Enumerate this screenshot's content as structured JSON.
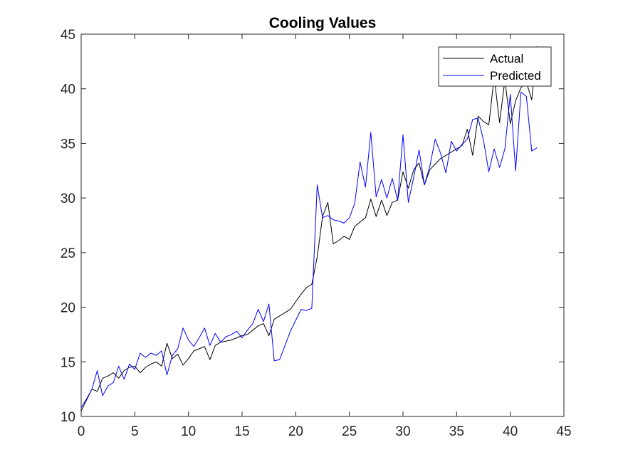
{
  "chart_data": {
    "type": "line",
    "title": "Cooling Values",
    "xlabel": "",
    "ylabel": "",
    "xlim": [
      0,
      45
    ],
    "ylim": [
      10,
      45
    ],
    "xticks": [
      0,
      5,
      10,
      15,
      20,
      25,
      30,
      35,
      40,
      45
    ],
    "yticks": [
      10,
      15,
      20,
      25,
      30,
      35,
      40,
      45
    ],
    "grid": false,
    "legend": "top-right",
    "series": [
      {
        "name": "Actual",
        "color": "#000000",
        "x": [
          0,
          0.5,
          1,
          1.5,
          2,
          2.5,
          3,
          3.5,
          4,
          4.5,
          5,
          5.5,
          6,
          6.5,
          7,
          7.5,
          8,
          8.5,
          9,
          9.5,
          10,
          10.5,
          11,
          11.5,
          12,
          12.5,
          13,
          13.5,
          14,
          14.5,
          15,
          15.5,
          16,
          16.5,
          17,
          17.5,
          18,
          18.5,
          19,
          19.5,
          20,
          20.5,
          21,
          21.5,
          22,
          22.5,
          23,
          23.5,
          24,
          24.5,
          25,
          25.5,
          26,
          26.5,
          27,
          27.5,
          28,
          28.5,
          29,
          29.5,
          30,
          30.5,
          31,
          31.5,
          32,
          32.5,
          33,
          33.5,
          34,
          34.5,
          35,
          35.5,
          36,
          36.5,
          37,
          37.5,
          38,
          38.5,
          39,
          39.5,
          40,
          40.5,
          41,
          41.5,
          42,
          42.5
        ],
        "values": [
          10.5,
          11.5,
          12.5,
          12.3,
          13.5,
          13.7,
          14,
          13.5,
          14.2,
          14.5,
          14.6,
          14,
          14.5,
          14.8,
          15,
          14.6,
          16.7,
          15.3,
          15.7,
          14.7,
          15.3,
          16,
          16.2,
          16.4,
          15.2,
          16.5,
          16.8,
          16.9,
          17,
          17.2,
          17.4,
          17.5,
          17.9,
          18.3,
          18.5,
          17.4,
          18.9,
          19.2,
          19.5,
          19.8,
          20.5,
          21.2,
          21.8,
          22.1,
          24.6,
          28.3,
          29.6,
          25.8,
          26.1,
          26.5,
          26.2,
          27.4,
          27.8,
          28.2,
          29.9,
          28.3,
          29.8,
          28.4,
          29.6,
          29.8,
          32.4,
          30.9,
          32.6,
          33.2,
          31.2,
          32.6,
          33.1,
          33.6,
          33.9,
          34.2,
          34.5,
          34.8,
          36.3,
          33.9,
          37.5,
          37,
          36.7,
          41.1,
          36.9,
          40.8,
          36.8,
          38.9,
          40.1,
          40.6,
          39,
          43.9
        ]
      },
      {
        "name": "Predicted",
        "color": "#0000ff",
        "x": [
          0,
          0.5,
          1,
          1.5,
          2,
          2.5,
          3,
          3.5,
          4,
          4.5,
          5,
          5.5,
          6,
          6.5,
          7,
          7.5,
          8,
          8.5,
          9,
          9.5,
          10,
          10.5,
          11,
          11.5,
          12,
          12.5,
          13,
          13.5,
          14,
          14.5,
          15,
          15.5,
          16,
          16.5,
          17,
          17.5,
          18,
          18.5,
          19,
          19.5,
          20,
          20.5,
          21,
          21.5,
          22,
          22.5,
          23,
          23.5,
          24,
          24.5,
          25,
          25.5,
          26,
          26.5,
          27,
          27.5,
          28,
          28.5,
          29,
          29.5,
          30,
          30.5,
          31,
          31.5,
          32,
          32.5,
          33,
          33.5,
          34,
          34.5,
          35,
          35.5,
          36,
          36.5,
          37,
          37.5,
          38,
          38.5,
          39,
          39.5,
          40,
          40.5,
          41,
          41.5,
          42,
          42.5
        ],
        "values": [
          10.8,
          11.6,
          12.5,
          14.2,
          11.9,
          12.8,
          13.1,
          14.6,
          13.4,
          14.8,
          14.3,
          15.8,
          15.4,
          15.8,
          15.6,
          16,
          13.8,
          15.6,
          16.2,
          18.1,
          17,
          16.4,
          17.2,
          18.1,
          16.5,
          17.6,
          16.8,
          17.3,
          17.5,
          17.8,
          17.2,
          17.9,
          18.5,
          19.8,
          18.7,
          20.3,
          15.1,
          15.2,
          16.5,
          17.8,
          18.8,
          19.8,
          19.7,
          19.9,
          31.2,
          28.2,
          28.4,
          28,
          27.9,
          27.7,
          28.2,
          29.5,
          33.3,
          31,
          36,
          30.1,
          31.7,
          30,
          31.8,
          29.8,
          35.8,
          29.6,
          31.9,
          34.4,
          31.2,
          32.9,
          35.4,
          34.1,
          32.3,
          35.2,
          34.3,
          34.9,
          35.4,
          37.2,
          37.3,
          35.3,
          32.4,
          34.5,
          32.8,
          34.5,
          39.5,
          32.5,
          39.7,
          39.3,
          34.3,
          34.6
        ]
      }
    ]
  }
}
